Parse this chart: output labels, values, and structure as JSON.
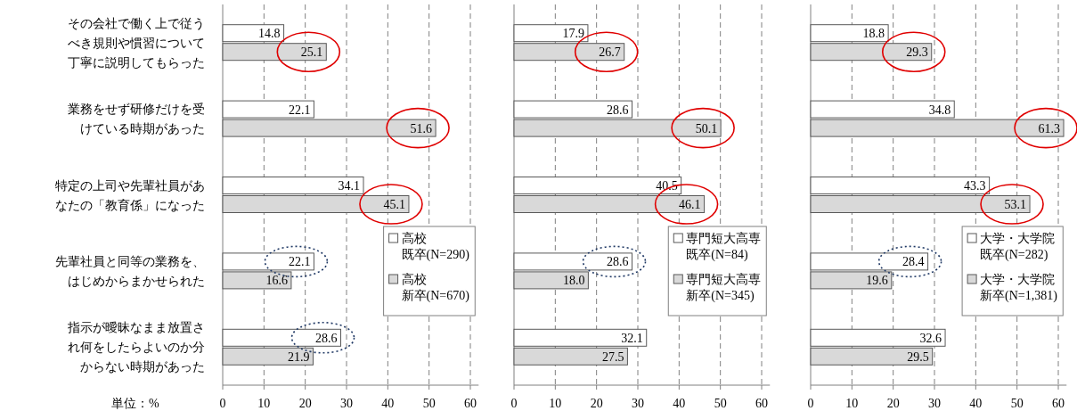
{
  "chart_data": [
    {
      "type": "bar",
      "orientation": "horizontal",
      "categories": [
        "その会社で働く上で従うべき規則や慣習について丁寧に説明してもらった",
        "業務をせず研修だけを受けている時期があった",
        "特定の上司や先輩社員があなたの「教育係」になった",
        "先輩社員と同等の業務を、はじめからまかせられた",
        "指示が曖昧なまま放置され何をしたらよいのか分からない時期があった"
      ],
      "series": [
        {
          "name": "高校既卒(N=290)",
          "color": "#ffffff",
          "values": [
            14.8,
            22.1,
            34.1,
            22.1,
            28.6
          ],
          "value_labels": [
            "14.8",
            "22.1",
            "34.1",
            "22.1",
            "28.6"
          ]
        },
        {
          "name": "高校新卒(N=670)",
          "color": "#d9d9d9",
          "values": [
            25.1,
            51.6,
            45.1,
            16.6,
            21.9
          ],
          "value_labels": [
            "25.1",
            "51.6",
            "45.1",
            "16.6",
            "21.9"
          ]
        }
      ],
      "xlim": [
        0,
        62
      ],
      "xticks": [
        0,
        10,
        20,
        30,
        40,
        50,
        60
      ],
      "grid": "x",
      "legend": "bottom right",
      "annotations": [
        "単位：%"
      ]
    },
    {
      "type": "bar",
      "orientation": "horizontal",
      "categories": [
        null,
        null,
        null,
        null,
        null
      ],
      "series": [
        {
          "name": "専門短大高専既卒(N=84)",
          "color": "#ffffff",
          "values": [
            17.9,
            28.6,
            40.5,
            28.6,
            32.1
          ],
          "value_labels": [
            "17.9",
            "28.6",
            "40.5",
            "28.6",
            "32.1"
          ]
        },
        {
          "name": "専門短大高専新卒(N=345)",
          "color": "#d9d9d9",
          "values": [
            26.7,
            50.1,
            46.1,
            18.0,
            27.5
          ],
          "value_labels": [
            "26.7",
            "50.1",
            "46.1",
            "18.0",
            "27.5"
          ]
        }
      ],
      "xlim": [
        0,
        62
      ],
      "xticks": [
        0,
        10,
        20,
        30,
        40,
        50,
        60
      ],
      "grid": "x",
      "legend": "bottom right"
    },
    {
      "type": "bar",
      "orientation": "horizontal",
      "categories": [
        null,
        null,
        null,
        null,
        null
      ],
      "series": [
        {
          "name": "大学・大学院既卒(N=282)",
          "color": "#ffffff",
          "values": [
            18.8,
            34.8,
            43.3,
            28.4,
            32.6
          ],
          "value_labels": [
            "18.8",
            "34.8",
            "43.3",
            "28.4",
            "32.6"
          ]
        },
        {
          "name": "大学・大学院新卒(N=1,381)",
          "color": "#d9d9d9",
          "values": [
            29.3,
            61.3,
            53.1,
            19.6,
            29.5
          ],
          "value_labels": [
            "29.3",
            "61.3",
            "53.1",
            "19.6",
            "29.5"
          ]
        }
      ],
      "xlim": [
        0,
        62
      ],
      "xticks": [
        0,
        10,
        20,
        30,
        40,
        50,
        60
      ],
      "grid": "x",
      "legend": "bottom right"
    }
  ]
}
